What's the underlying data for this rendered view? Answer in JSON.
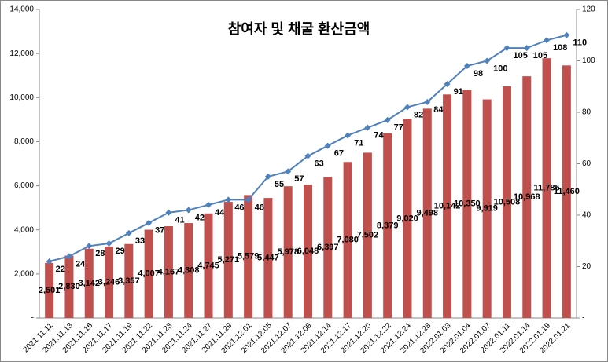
{
  "chart_data": {
    "type": "bar_line",
    "title": "참여자 및 채굴 환산금액",
    "categories": [
      "2021.11.11",
      "2021.11.13",
      "2021.11.16",
      "2021.11.17",
      "2021.11.19",
      "2021.11.22",
      "2021.11.23",
      "2021.11.24",
      "2021.11.27",
      "2021.11.29",
      "2021.12.01",
      "2021.12.05",
      "2021.12.07",
      "2021.12.09",
      "2021.12.14",
      "2021.12.17",
      "2021.12.20",
      "2021.12.22",
      "2021.12.24",
      "2021.12.28",
      "2022.01.03",
      "2022.01.04",
      "2022.01.07",
      "2022.01.11",
      "2022.01.14",
      "2022.01.19",
      "2022.01.21"
    ],
    "series": [
      {
        "type": "bar",
        "color": "#c0504d",
        "values": [
          2501,
          2830,
          3142,
          3246,
          3357,
          4007,
          4167,
          4308,
          4745,
          5271,
          5579,
          5447,
          5978,
          6048,
          6397,
          7080,
          7502,
          8379,
          9020,
          9498,
          10142,
          10350,
          9919,
          10508,
          10968,
          11785,
          11460
        ],
        "value_labels": [
          "2,501",
          "2,830",
          "3,142",
          "3,246",
          "3,357",
          "4,007",
          "4,167",
          "4,308",
          "4,745",
          "5,271",
          "5,579",
          "5,447",
          "5,978",
          "6,048",
          "6,397",
          "7,080",
          "7,502",
          "8,379",
          "9,020",
          "9,498",
          "10,142",
          "10,350",
          "9,919",
          "10,508",
          "10,968",
          "11,785",
          "11,460"
        ]
      },
      {
        "type": "line",
        "color": "#4f81bd",
        "axis": "y2",
        "values": [
          22,
          24,
          28,
          29,
          33,
          37,
          41,
          42,
          44,
          46,
          46,
          55,
          57,
          63,
          67,
          71,
          74,
          77,
          82,
          84,
          91,
          98,
          100,
          105,
          105,
          108,
          110
        ]
      }
    ],
    "ylim": [
      0,
      14000
    ],
    "yticks": [
      {
        "value": 0,
        "label": "-"
      },
      {
        "value": 2000,
        "label": "2,000"
      },
      {
        "value": 4000,
        "label": "4,000"
      },
      {
        "value": 6000,
        "label": "6,000"
      },
      {
        "value": 8000,
        "label": "8,000"
      },
      {
        "value": 10000,
        "label": "10,000"
      },
      {
        "value": 12000,
        "label": "12,000"
      },
      {
        "value": 14000,
        "label": "14,000"
      }
    ],
    "y2lim": [
      0,
      120
    ],
    "y2ticks": [
      {
        "value": 0,
        "label": "-"
      },
      20,
      40,
      60,
      80,
      100,
      120
    ]
  }
}
